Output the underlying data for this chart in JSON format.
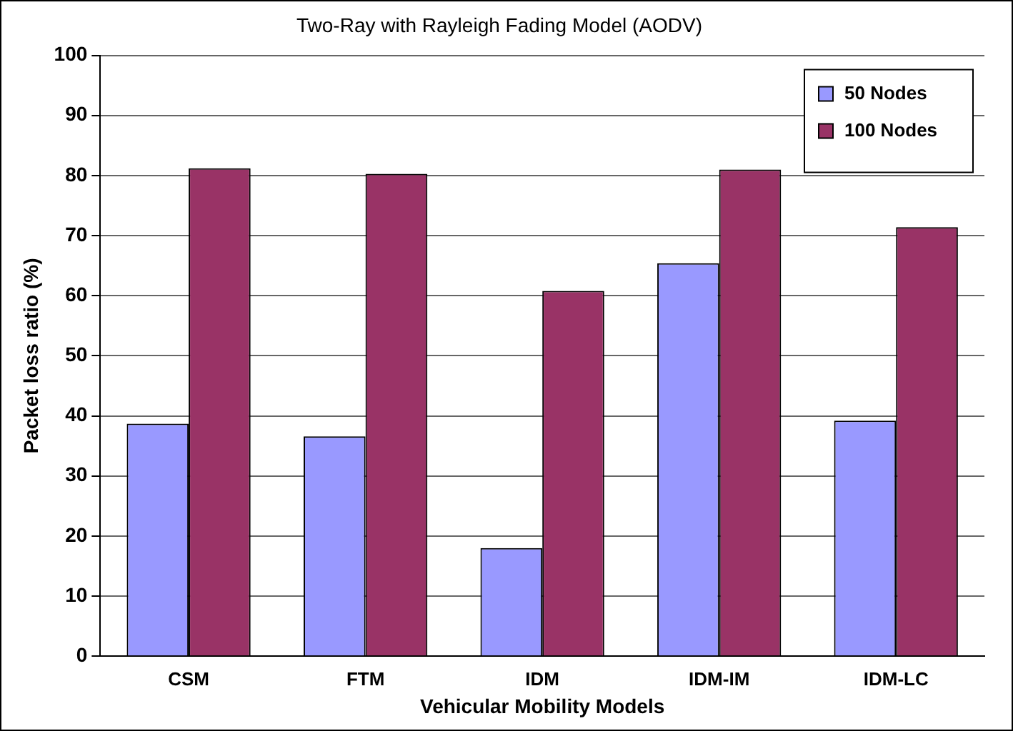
{
  "chart_data": {
    "type": "bar",
    "title": "Two-Ray with Rayleigh Fading Model (AODV)",
    "xlabel": "Vehicular Mobility Models",
    "ylabel": "Packet loss ratio (%)",
    "categories": [
      "CSM",
      "FTM",
      "IDM",
      "IDM-IM",
      "IDM-LC"
    ],
    "series": [
      {
        "name": "50 Nodes",
        "color": "#9999ff",
        "values": [
          38.7,
          36.6,
          18,
          65.4,
          39.2
        ]
      },
      {
        "name": "100 Nodes",
        "color": "#993366",
        "values": [
          81.2,
          80.3,
          60.8,
          81,
          71.4
        ]
      }
    ],
    "ylim": [
      0,
      100
    ],
    "yticks": [
      0,
      10,
      20,
      30,
      40,
      50,
      60,
      70,
      80,
      90,
      100
    ],
    "grid": "y",
    "legend": "top right"
  }
}
